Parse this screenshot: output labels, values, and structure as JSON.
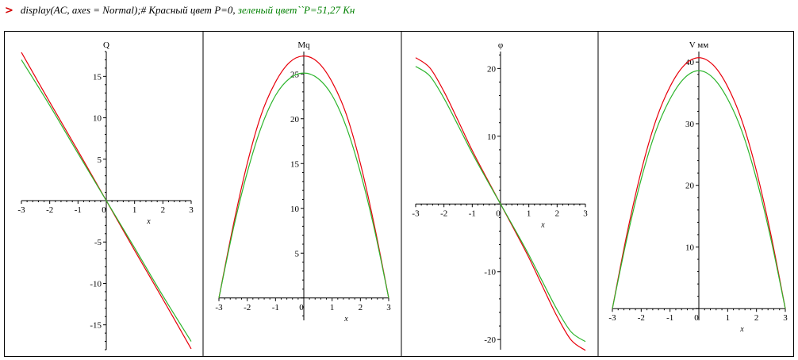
{
  "command": {
    "prompt_symbol": ">",
    "code_text": "display(AC, axes = Normal);# Красный цвет P=0, ",
    "green_text": "зеленый цвет``P=51,27 Кн"
  },
  "colors": {
    "red_series": "#e8000b",
    "green_series": "#2db52d",
    "axes": "#000000"
  },
  "chart_data": [
    {
      "type": "line",
      "ylabel": "Q",
      "xlabel": "x",
      "xlim": [
        -3,
        3
      ],
      "ylim": [
        -18,
        18
      ],
      "xticks": [
        -3,
        -2,
        -1,
        0,
        1,
        2,
        3
      ],
      "yticks": [
        -15,
        -10,
        -5,
        5,
        10,
        15
      ],
      "x": [
        -3,
        -2,
        -1,
        0,
        1,
        2,
        3
      ],
      "series": [
        {
          "color": "red",
          "values": [
            17.9,
            11.9,
            6.0,
            0,
            -6.0,
            -11.9,
            -17.9
          ]
        },
        {
          "color": "green",
          "values": [
            17.0,
            11.5,
            5.7,
            0,
            -5.7,
            -11.5,
            -17.0
          ]
        }
      ]
    },
    {
      "type": "line",
      "ylabel": "Mq",
      "xlabel": "x",
      "xlim": [
        -3,
        3
      ],
      "ylim": [
        -2.5,
        27.5
      ],
      "xticks": [
        -3,
        -2,
        -1,
        0,
        1,
        2,
        3
      ],
      "yticks": [
        5,
        10,
        15,
        20,
        25
      ],
      "x": [
        -3,
        -2.5,
        -2,
        -1.5,
        -1,
        -0.5,
        0,
        0.5,
        1,
        1.5,
        2,
        2.5,
        3
      ],
      "series": [
        {
          "color": "red",
          "values": [
            0,
            8.0,
            15.0,
            20.5,
            24.1,
            26.3,
            27.0,
            26.3,
            24.1,
            20.5,
            15.0,
            8.0,
            0
          ]
        },
        {
          "color": "green",
          "values": [
            0,
            7.6,
            14.0,
            19.1,
            22.6,
            24.5,
            25.1,
            24.5,
            22.6,
            19.1,
            14.0,
            7.6,
            0
          ]
        }
      ]
    },
    {
      "type": "line",
      "ylabel": "φ",
      "xlabel": "x",
      "xlim": [
        -3,
        3
      ],
      "ylim": [
        -21.5,
        22.5
      ],
      "xticks": [
        -3,
        -2,
        -1,
        0,
        1,
        2,
        3
      ],
      "yticks": [
        -20,
        -10,
        10,
        20
      ],
      "x": [
        -3,
        -2.5,
        -2,
        -1.5,
        -1,
        -0.5,
        0,
        0.5,
        1,
        1.5,
        2,
        2.5,
        3
      ],
      "series": [
        {
          "color": "red",
          "values": [
            21.6,
            20.1,
            16.6,
            12.3,
            7.9,
            3.9,
            0,
            -3.9,
            -7.9,
            -12.3,
            -16.6,
            -20.1,
            -21.6
          ]
        },
        {
          "color": "green",
          "values": [
            20.3,
            18.9,
            15.6,
            11.6,
            7.5,
            3.7,
            0,
            -3.7,
            -7.5,
            -11.6,
            -15.6,
            -18.9,
            -20.3
          ]
        }
      ]
    },
    {
      "type": "line",
      "ylabel": "V мм",
      "xlabel": "x",
      "xlim": [
        -3,
        3
      ],
      "ylim": [
        -1.9,
        41.7
      ],
      "xticks": [
        -3,
        -2,
        -1,
        0,
        1,
        2,
        3
      ],
      "yticks": [
        10,
        20,
        30,
        40
      ],
      "x": [
        -3,
        -2.5,
        -2,
        -1.5,
        -1,
        -0.5,
        0,
        0.5,
        1,
        1.5,
        2,
        2.5,
        3
      ],
      "series": [
        {
          "color": "red",
          "values": [
            0,
            12.0,
            22.3,
            30.4,
            36.0,
            39.5,
            40.7,
            39.5,
            36.0,
            30.4,
            22.3,
            12.0,
            0
          ]
        },
        {
          "color": "green",
          "values": [
            0,
            11.3,
            21.0,
            28.7,
            34.0,
            37.4,
            38.6,
            37.4,
            34.0,
            28.7,
            21.0,
            11.3,
            0
          ]
        }
      ]
    }
  ]
}
